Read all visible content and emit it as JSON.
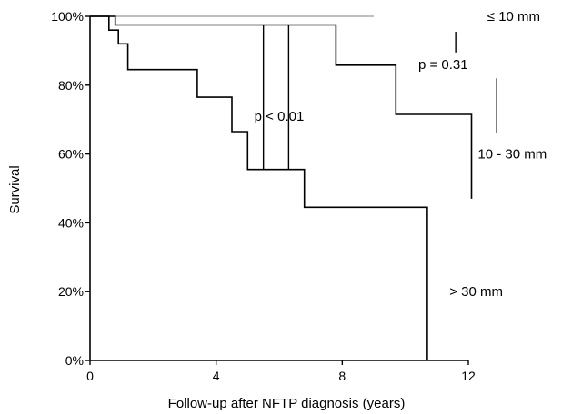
{
  "chart_data": {
    "type": "line",
    "step": true,
    "xlabel": "Follow-up after NFTP diagnosis (years)",
    "ylabel": "Survival",
    "xlim": [
      0,
      12
    ],
    "ylim": [
      0,
      100
    ],
    "x_ticks": [
      0,
      4,
      8,
      12
    ],
    "y_ticks": [
      0,
      20,
      40,
      60,
      80,
      100
    ],
    "y_tick_labels": [
      "0%",
      "20%",
      "40%",
      "60%",
      "80%",
      "100%"
    ],
    "grid": false,
    "series": [
      {
        "name": "≤ 10 mm",
        "color": "#999999",
        "x": [
          0,
          9
        ],
        "y": [
          100,
          100
        ]
      },
      {
        "name": "10 - 30 mm",
        "color": "#000000",
        "x": [
          0,
          0.8,
          0.8,
          7.8,
          7.8,
          9.7,
          9.7,
          12.1,
          12.1
        ],
        "y": [
          100,
          100,
          97.5,
          97.5,
          85.8,
          85.8,
          71.5,
          71.5,
          47
        ]
      },
      {
        "name": "> 30 mm",
        "color": "#000000",
        "x": [
          0,
          0.6,
          0.6,
          0.9,
          0.9,
          1.2,
          1.2,
          3.4,
          3.4,
          4.5,
          4.5,
          5.0,
          5.0,
          6.8,
          6.8,
          10.7,
          10.7
        ],
        "y": [
          100,
          100,
          96,
          96,
          92,
          92,
          84.5,
          84.5,
          76.5,
          76.5,
          66.5,
          66.5,
          55.5,
          55.5,
          44.5,
          44.5,
          0
        ]
      }
    ],
    "annotations": [
      {
        "text": "p < 0.01",
        "x": 6.0,
        "y": 71
      },
      {
        "text": "p = 0.31",
        "x": 11.2,
        "y": 86
      }
    ]
  }
}
